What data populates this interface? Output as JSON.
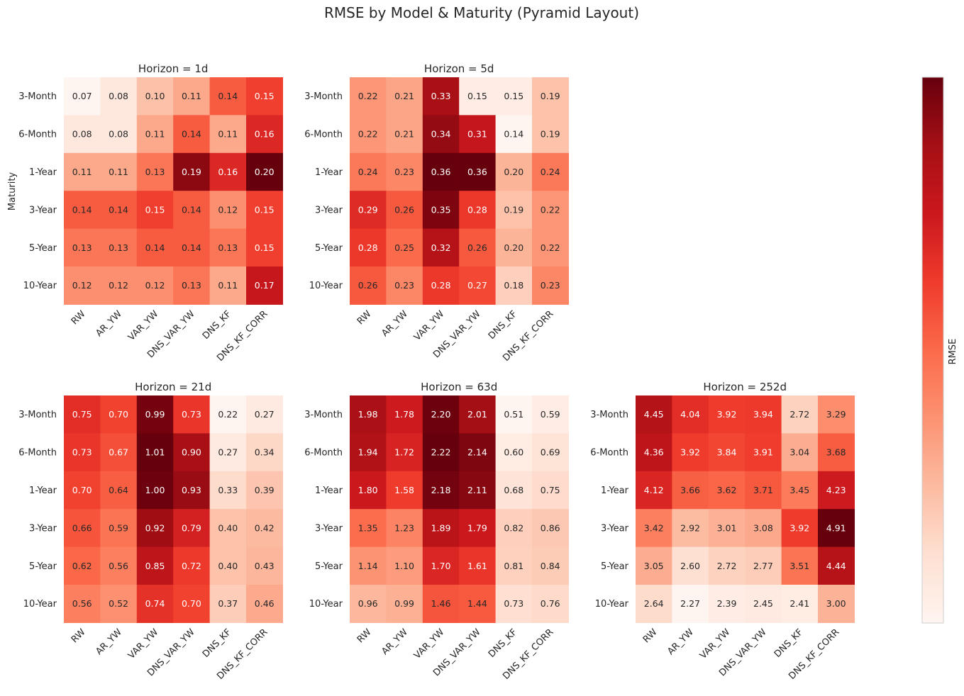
{
  "title": "RMSE by Model & Maturity (Pyramid Layout)",
  "ylabel": "Maturity",
  "colorbar": {
    "label": "RMSE",
    "colormap": "Reds",
    "light": "#fff5f0",
    "dark": "#67000d"
  },
  "colors": {
    "text_dark": "#262626",
    "text_light": "#ffffff"
  },
  "chart_data": [
    {
      "type": "heatmap",
      "title": "Horizon = 1d",
      "x": [
        "RW",
        "AR_YW",
        "VAR_YW",
        "DNS_VAR_YW",
        "DNS_KF",
        "DNS_KF_CORR"
      ],
      "y": [
        "3-Month",
        "6-Month",
        "1-Year",
        "3-Year",
        "5-Year",
        "10-Year"
      ],
      "values": [
        [
          0.07,
          0.08,
          0.1,
          0.11,
          0.14,
          0.15
        ],
        [
          0.08,
          0.08,
          0.11,
          0.14,
          0.11,
          0.16
        ],
        [
          0.11,
          0.11,
          0.13,
          0.19,
          0.16,
          0.2
        ],
        [
          0.14,
          0.14,
          0.15,
          0.14,
          0.12,
          0.15
        ],
        [
          0.13,
          0.13,
          0.14,
          0.14,
          0.13,
          0.15
        ],
        [
          0.12,
          0.12,
          0.12,
          0.13,
          0.11,
          0.17
        ]
      ]
    },
    {
      "type": "heatmap",
      "title": "Horizon = 5d",
      "x": [
        "RW",
        "AR_YW",
        "VAR_YW",
        "DNS_VAR_YW",
        "DNS_KF",
        "DNS_KF_CORR"
      ],
      "y": [
        "3-Month",
        "6-Month",
        "1-Year",
        "3-Year",
        "5-Year",
        "10-Year"
      ],
      "values": [
        [
          0.22,
          0.21,
          0.33,
          0.15,
          0.15,
          0.19
        ],
        [
          0.22,
          0.21,
          0.34,
          0.31,
          0.14,
          0.19
        ],
        [
          0.24,
          0.23,
          0.36,
          0.36,
          0.2,
          0.24
        ],
        [
          0.29,
          0.26,
          0.35,
          0.28,
          0.19,
          0.22
        ],
        [
          0.28,
          0.25,
          0.32,
          0.26,
          0.2,
          0.22
        ],
        [
          0.26,
          0.23,
          0.28,
          0.27,
          0.18,
          0.23
        ]
      ]
    },
    {
      "type": "heatmap",
      "title": "Horizon = 21d",
      "x": [
        "RW",
        "AR_YW",
        "VAR_YW",
        "DNS_VAR_YW",
        "DNS_KF",
        "DNS_KF_CORR"
      ],
      "y": [
        "3-Month",
        "6-Month",
        "1-Year",
        "3-Year",
        "5-Year",
        "10-Year"
      ],
      "values": [
        [
          0.75,
          0.7,
          0.99,
          0.73,
          0.22,
          0.27
        ],
        [
          0.73,
          0.67,
          1.01,
          0.9,
          0.27,
          0.34
        ],
        [
          0.7,
          0.64,
          1.0,
          0.93,
          0.33,
          0.39
        ],
        [
          0.66,
          0.59,
          0.92,
          0.79,
          0.4,
          0.42
        ],
        [
          0.62,
          0.56,
          0.85,
          0.72,
          0.4,
          0.43
        ],
        [
          0.56,
          0.52,
          0.74,
          0.7,
          0.37,
          0.46
        ]
      ]
    },
    {
      "type": "heatmap",
      "title": "Horizon = 63d",
      "x": [
        "RW",
        "AR_YW",
        "VAR_YW",
        "DNS_VAR_YW",
        "DNS_KF",
        "DNS_KF_CORR"
      ],
      "y": [
        "3-Month",
        "6-Month",
        "1-Year",
        "3-Year",
        "5-Year",
        "10-Year"
      ],
      "values": [
        [
          1.98,
          1.78,
          2.2,
          2.01,
          0.51,
          0.59
        ],
        [
          1.94,
          1.72,
          2.22,
          2.14,
          0.6,
          0.69
        ],
        [
          1.8,
          1.58,
          2.18,
          2.11,
          0.68,
          0.75
        ],
        [
          1.35,
          1.23,
          1.89,
          1.79,
          0.82,
          0.86
        ],
        [
          1.14,
          1.1,
          1.7,
          1.61,
          0.81,
          0.84
        ],
        [
          0.96,
          0.99,
          1.46,
          1.44,
          0.73,
          0.76
        ]
      ]
    },
    {
      "type": "heatmap",
      "title": "Horizon = 252d",
      "x": [
        "RW",
        "AR_YW",
        "VAR_YW",
        "DNS_VAR_YW",
        "DNS_KF",
        "DNS_KF_CORR"
      ],
      "y": [
        "3-Month",
        "6-Month",
        "1-Year",
        "3-Year",
        "5-Year",
        "10-Year"
      ],
      "values": [
        [
          4.45,
          4.04,
          3.92,
          3.94,
          2.72,
          3.29
        ],
        [
          4.36,
          3.92,
          3.84,
          3.91,
          3.04,
          3.68
        ],
        [
          4.12,
          3.66,
          3.62,
          3.71,
          3.45,
          4.23
        ],
        [
          3.42,
          2.92,
          3.01,
          3.08,
          3.92,
          4.91
        ],
        [
          3.05,
          2.6,
          2.72,
          2.77,
          3.51,
          4.44
        ],
        [
          2.64,
          2.27,
          2.39,
          2.45,
          2.41,
          3.0
        ]
      ]
    }
  ]
}
